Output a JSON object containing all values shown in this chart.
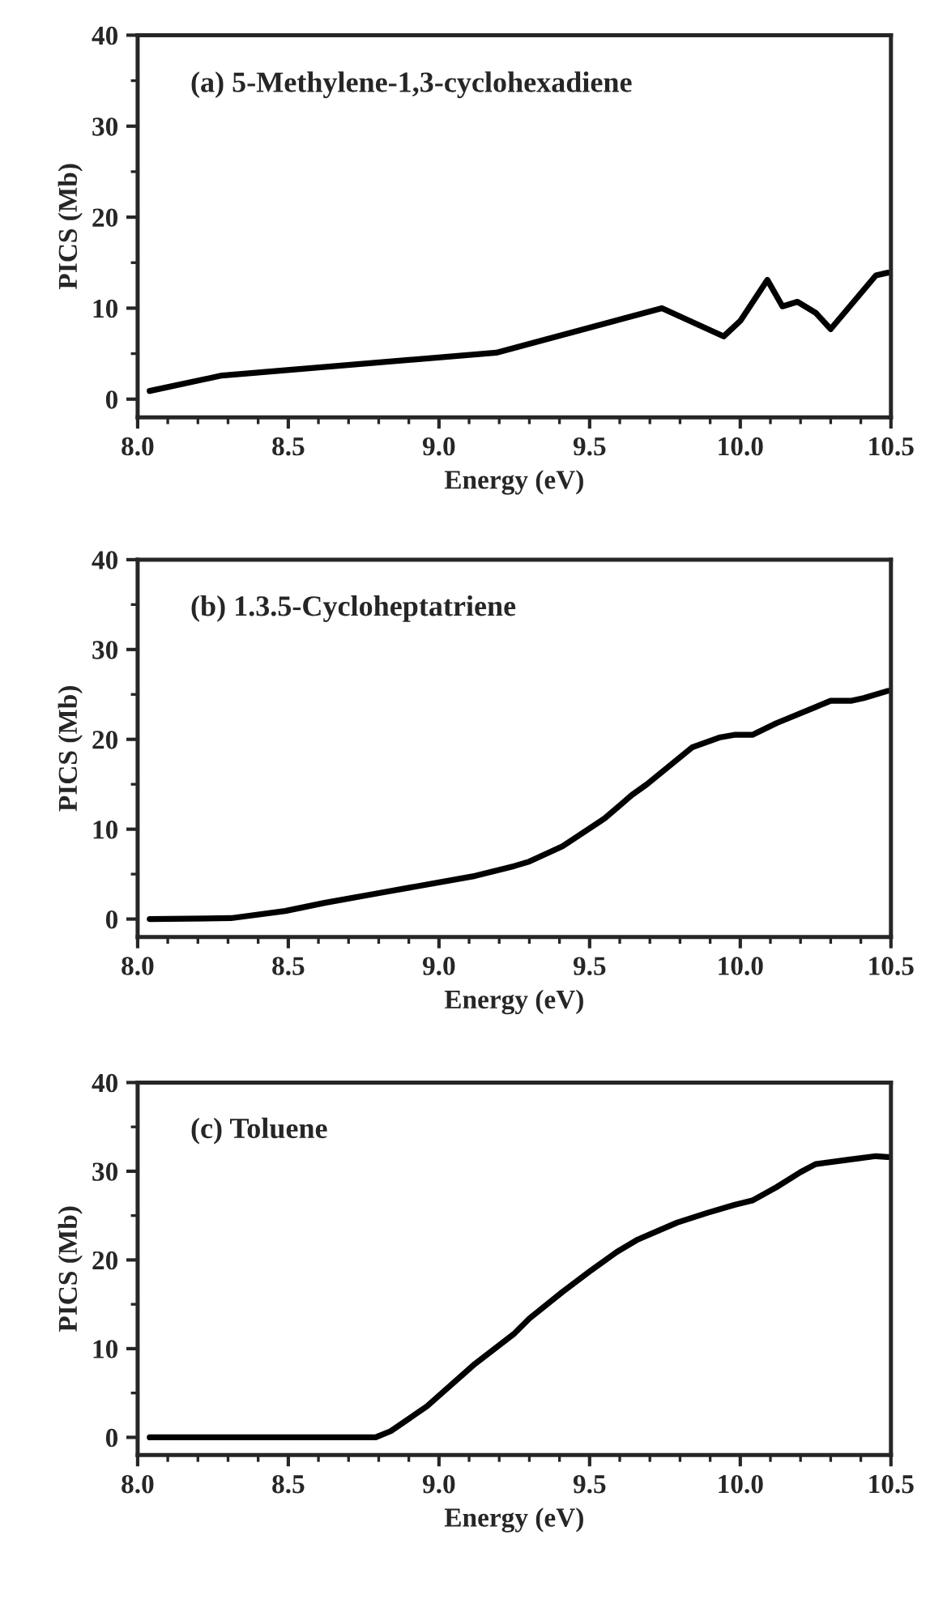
{
  "chart_data": [
    {
      "type": "line",
      "title": "(a) 5-Methylene-1,3-cyclohexadiene",
      "xlabel": "Energy (eV)",
      "ylabel": "PICS (Mb)",
      "xlim": [
        8.0,
        10.5
      ],
      "ylim": [
        -2,
        40
      ],
      "xticks": [
        {
          "value": 8.0,
          "label": "8.0"
        },
        {
          "value": 8.5,
          "label": "8.5"
        },
        {
          "value": 9.0,
          "label": "9.0"
        },
        {
          "value": 9.5,
          "label": "9.5"
        },
        {
          "value": 10.0,
          "label": "10.0"
        },
        {
          "value": 10.5,
          "label": "10.5"
        }
      ],
      "yticks": [
        0,
        10,
        20,
        30,
        40
      ],
      "grid": false,
      "legend": false,
      "series": [
        {
          "color": "#000000",
          "x": [
            8.04,
            8.28,
            9.19,
            9.74,
            9.945,
            10.0,
            10.09,
            10.14,
            10.19,
            10.25,
            10.3,
            10.45,
            10.49
          ],
          "values": [
            0.9,
            2.6,
            5.1,
            10.0,
            6.9,
            8.6,
            13.1,
            10.2,
            10.7,
            9.5,
            7.7,
            13.6,
            13.9
          ]
        }
      ]
    },
    {
      "type": "line",
      "title": "(b) 1.3.5-Cycloheptatriene",
      "xlabel": "Energy (eV)",
      "ylabel": "PICS (Mb)",
      "xlim": [
        8.0,
        10.5
      ],
      "ylim": [
        -2,
        40
      ],
      "xticks": [
        {
          "value": 8.0,
          "label": "8.0"
        },
        {
          "value": 8.5,
          "label": "8.5"
        },
        {
          "value": 9.0,
          "label": "9.0"
        },
        {
          "value": 9.5,
          "label": "9.5"
        },
        {
          "value": 10.0,
          "label": "10.0"
        },
        {
          "value": 10.5,
          "label": "10.5"
        }
      ],
      "yticks": [
        0,
        10,
        20,
        30,
        40
      ],
      "grid": false,
      "legend": false,
      "series": [
        {
          "color": "#000000",
          "x": [
            8.04,
            8.31,
            8.49,
            8.62,
            8.82,
            9.12,
            9.25,
            9.3,
            9.41,
            9.55,
            9.64,
            9.69,
            9.84,
            9.93,
            9.98,
            10.04,
            10.12,
            10.25,
            10.3,
            10.37,
            10.41,
            10.49
          ],
          "values": [
            0,
            0.1,
            0.9,
            1.8,
            3.0,
            4.8,
            5.9,
            6.4,
            8.1,
            11.2,
            13.8,
            15.0,
            19.1,
            20.2,
            20.5,
            20.5,
            21.8,
            23.6,
            24.3,
            24.3,
            24.6,
            25.4
          ]
        }
      ]
    },
    {
      "type": "line",
      "title": "(c) Toluene",
      "xlabel": "Energy (eV)",
      "ylabel": "PICS (Mb)",
      "xlim": [
        8.0,
        10.5
      ],
      "ylim": [
        -2,
        40
      ],
      "xticks": [
        {
          "value": 8.0,
          "label": "8.0"
        },
        {
          "value": 8.5,
          "label": "8.5"
        },
        {
          "value": 9.0,
          "label": "9.0"
        },
        {
          "value": 9.5,
          "label": "9.5"
        },
        {
          "value": 10.0,
          "label": "10.0"
        },
        {
          "value": 10.5,
          "label": "10.5"
        }
      ],
      "yticks": [
        0,
        10,
        20,
        30,
        40
      ],
      "grid": false,
      "legend": false,
      "series": [
        {
          "color": "#000000",
          "x": [
            8.04,
            8.79,
            8.84,
            8.96,
            9.12,
            9.25,
            9.3,
            9.41,
            9.5,
            9.59,
            9.66,
            9.79,
            9.89,
            9.98,
            10.04,
            10.12,
            10.2,
            10.25,
            10.36,
            10.45,
            10.49
          ],
          "values": [
            0,
            0,
            0.7,
            3.5,
            8.3,
            11.7,
            13.4,
            16.4,
            18.7,
            20.9,
            22.3,
            24.2,
            25.3,
            26.2,
            26.7,
            28.2,
            29.9,
            30.8,
            31.3,
            31.7,
            31.6
          ]
        }
      ]
    }
  ]
}
